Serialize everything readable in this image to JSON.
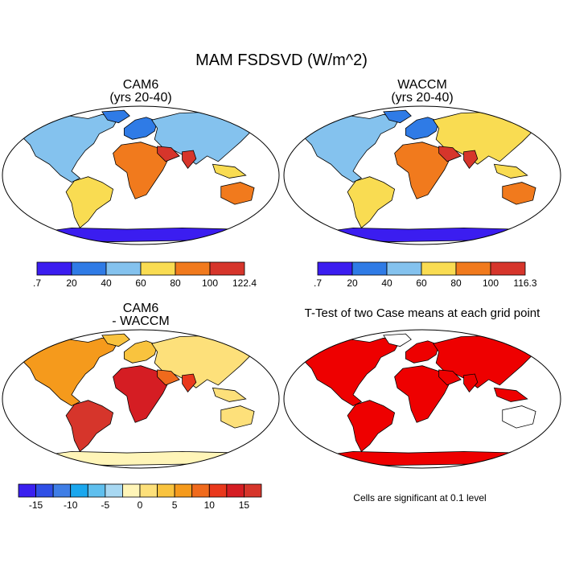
{
  "figure": {
    "title": "MAM FSDSVD (W/m^2)"
  },
  "panels": [
    {
      "title_line1": "CAM6",
      "title_line2": "(yrs 20-40)",
      "colorbar": {
        "colors": [
          "#3b1df0",
          "#2f7be6",
          "#84c2ee",
          "#f9dc52",
          "#f17a1d",
          "#d6352b"
        ],
        "labels": [
          ".7",
          "20",
          "40",
          "60",
          "80",
          "100",
          "122.4"
        ]
      }
    },
    {
      "title_line1": "WACCM",
      "title_line2": "(yrs 20-40)",
      "colorbar": {
        "colors": [
          "#3b1df0",
          "#2f7be6",
          "#84c2ee",
          "#f9dc52",
          "#f17a1d",
          "#d6352b"
        ],
        "labels": [
          ".7",
          "20",
          "40",
          "60",
          "80",
          "100",
          "116.3"
        ]
      }
    },
    {
      "title_line1": "CAM6",
      "title_line2": "- WACCM",
      "colorbar": {
        "colors": [
          "#3a20f0",
          "#2f4fe6",
          "#3f7ee6",
          "#1aa7ee",
          "#5fbfee",
          "#a8d8f2",
          "#fff5b8",
          "#fde07a",
          "#f9c33e",
          "#f59a1c",
          "#f06a1c",
          "#e9381c",
          "#d51d23",
          "#d6352b"
        ],
        "labels": [
          "-15",
          "-10",
          "-5",
          "0",
          "5",
          "10",
          "15"
        ]
      }
    },
    {
      "title_line1": "T-Test of two Case means at each grid point",
      "footnote": "Cells are significant at 0.1 level"
    }
  ],
  "colors": {
    "ocean": "#ffffff",
    "outline": "#000000",
    "significant": "#ee0000"
  },
  "chart_data": {
    "type": "heatmap",
    "title": "MAM FSDSVD (W/m^2)",
    "variable": "FSDSVD",
    "units": "W/m^2",
    "season": "MAM",
    "maps": [
      {
        "name": "CAM6",
        "subtitle": "(yrs 20-40)",
        "range": [
          0.7,
          122.4
        ],
        "levels": [
          0.7,
          20,
          40,
          60,
          80,
          100,
          122.4
        ]
      },
      {
        "name": "WACCM",
        "subtitle": "(yrs 20-40)",
        "range": [
          0.7,
          116.3
        ],
        "levels": [
          0.7,
          20,
          40,
          60,
          80,
          100,
          116.3
        ]
      },
      {
        "name": "CAM6 - WACCM",
        "range": [
          -15,
          15
        ],
        "ticks": [
          -15,
          -10,
          -5,
          0,
          5,
          10,
          15
        ]
      },
      {
        "name": "T-Test of two Case means at each grid point",
        "significance_level": 0.1
      }
    ]
  }
}
